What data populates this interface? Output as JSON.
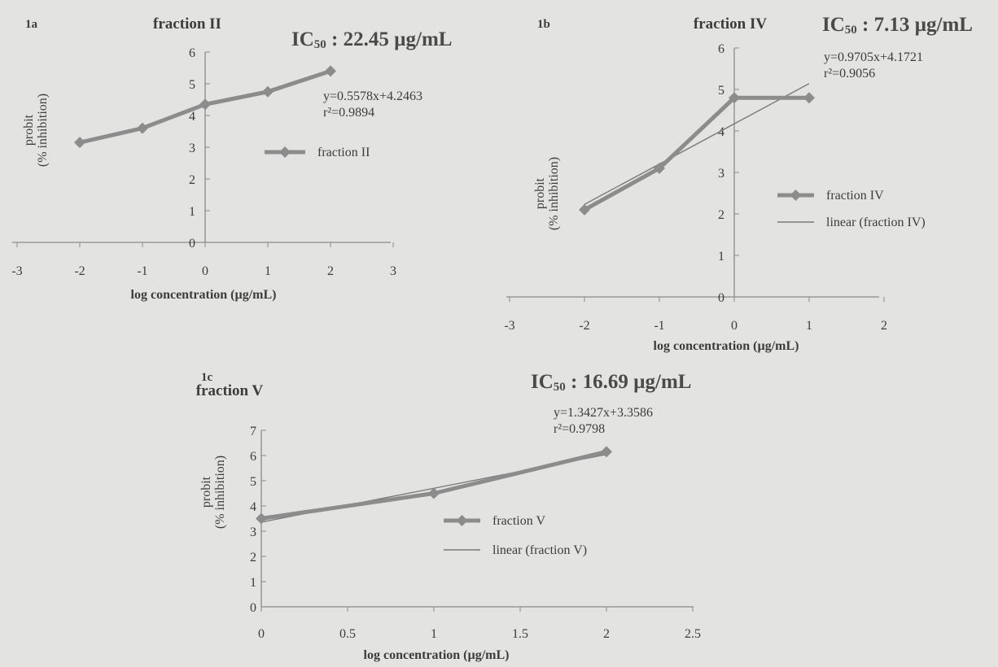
{
  "panels": [
    {
      "tag": "1a",
      "ic50_prefix": "IC",
      "ic50_sub": "50",
      "ic50_value": " : 22.45 µg/mL",
      "equation": "y=0.5578x+4.2463",
      "r2": "r²=0.9894"
    },
    {
      "tag": "1b",
      "ic50_prefix": "IC",
      "ic50_sub": "50",
      "ic50_value": " : 7.13 µg/mL",
      "equation": "y=0.9705x+4.1721",
      "r2": "r²=0.9056"
    },
    {
      "tag": "1c",
      "ic50_prefix": "IC",
      "ic50_sub": "50",
      "ic50_value": " : 16.69 µg/mL",
      "equation": "y=1.3427x+3.3586",
      "r2": "r²=0.9798"
    }
  ],
  "chart_data": [
    {
      "type": "line",
      "title": "fraction II",
      "xlabel": "log concentration (µg/mL)",
      "ylabel": [
        "probit",
        "(% inhibition)"
      ],
      "xlim": [
        -3,
        3
      ],
      "ylim": [
        0,
        6
      ],
      "xticks": [
        -3,
        -2,
        -1,
        0,
        1,
        2,
        3
      ],
      "yticks": [
        0,
        1,
        2,
        3,
        4,
        5,
        6
      ],
      "series": [
        {
          "name": "fraction II",
          "x": [
            -2,
            -1,
            0,
            1,
            2
          ],
          "y": [
            3.15,
            3.6,
            4.35,
            4.75,
            5.4
          ]
        }
      ],
      "trendline": null,
      "legend": "right"
    },
    {
      "type": "line",
      "title": "fraction IV",
      "xlabel": "log concentration (µg/mL)",
      "ylabel": [
        "probit",
        "(% inhibition)"
      ],
      "xlim": [
        -3,
        2
      ],
      "ylim": [
        0,
        6
      ],
      "xticks": [
        -3,
        -2,
        -1,
        0,
        1,
        2
      ],
      "yticks": [
        0,
        1,
        2,
        3,
        4,
        5,
        6
      ],
      "series": [
        {
          "name": "fraction IV",
          "x": [
            -2,
            -1,
            0,
            1
          ],
          "y": [
            2.1,
            3.1,
            4.8,
            4.8
          ]
        }
      ],
      "trendline": {
        "name": "linear (fraction IV)",
        "slope": 0.9705,
        "intercept": 4.1721,
        "x": [
          -2,
          1
        ]
      },
      "legend": "right"
    },
    {
      "type": "line",
      "title": "fraction V",
      "xlabel": "log concentration (µg/mL)",
      "ylabel": [
        "probit",
        "(% inhibition)"
      ],
      "xlim": [
        0,
        2.5
      ],
      "ylim": [
        0,
        7
      ],
      "xticks": [
        0,
        0.5,
        1,
        1.5,
        2,
        2.5
      ],
      "yticks": [
        0,
        1,
        2,
        3,
        4,
        5,
        6,
        7
      ],
      "series": [
        {
          "name": "fraction V",
          "x": [
            0,
            1,
            2
          ],
          "y": [
            3.5,
            4.5,
            6.15
          ]
        }
      ],
      "trendline": {
        "name": "linear (fraction V)",
        "slope": 1.3427,
        "intercept": 3.3586,
        "x": [
          0,
          2
        ]
      },
      "legend": "right"
    }
  ]
}
